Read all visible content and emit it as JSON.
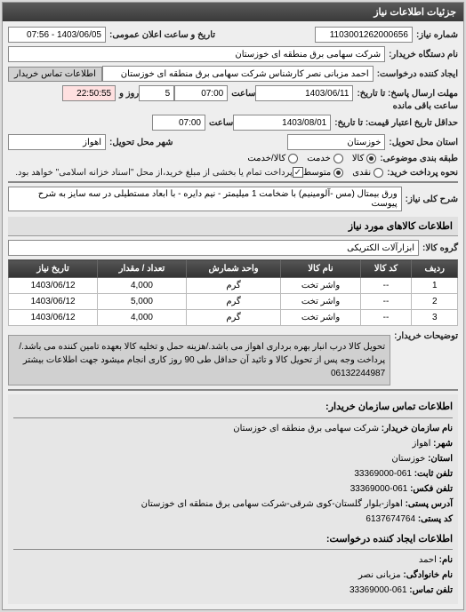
{
  "panel_title": "جزئیات اطلاعات نیاز",
  "header": {
    "req_no_label": "شماره نیاز:",
    "req_no": "1103001262000656",
    "announce_label": "تاریخ و ساعت اعلان عمومی:",
    "announce_value": "1403/06/05 - 07:56",
    "buyer_label": "نام دستگاه خریدار:",
    "buyer_value": "شرکت سهامی برق منطقه ای خوزستان",
    "requester_label": "ایجاد کننده درخواست:",
    "requester_value": "احمد مزبانی نصر کارشناس شرکت سهامی برق منطقه ای خوزستان",
    "contact_btn": "اطلاعات تماس خریدار"
  },
  "dates": {
    "deadline_label": "مهلت ارسال پاسخ: تا تاریخ:",
    "deadline_date": "1403/06/11",
    "deadline_time_label": "ساعت",
    "deadline_time": "07:00",
    "days_label": "روز و",
    "days_value": "5",
    "remain_label": "ساعت باقی مانده",
    "remain_value": "22:50:55",
    "validity_label": "حداقل تاریخ اعتبار قیمت: تا تاریخ:",
    "validity_date": "1403/08/01",
    "validity_time": "07:00"
  },
  "delivery": {
    "province_label": "استان محل تحویل:",
    "province": "خوزستان",
    "city_label": "شهر محل تحویل:",
    "city": "اهواز"
  },
  "package": {
    "label": "طبقه بندی موضوعی:",
    "opt_goods": "کالا",
    "opt_service": "خدمت",
    "pay_label": "کالا/خدمت",
    "receipt_label": "نحوه پرداخت خرید:",
    "opt_low": "نقدی",
    "opt_mid": "متوسط",
    "note": "پرداخت تمام یا بخشی از مبلغ خرید،از محل \"اسناد خزانه اسلامی\" خواهد بود."
  },
  "need": {
    "title_label": "شرح کلی نیاز:",
    "title_value": "ورق بیمتال (مس -آلومینیم) با ضخامت 1 میلیمتر - نیم دایره - با ابعاد مستطیلی در سه سایز به شرح پیوست"
  },
  "goods": {
    "section_title": "اطلاعات کالاهای مورد نیاز",
    "group_label": "گروه کالا:",
    "group_value": "ابزارآلات الکتریکی",
    "columns": [
      "ردیف",
      "کد کالا",
      "نام کالا",
      "واحد شمارش",
      "تعداد / مقدار",
      "تاریخ نیاز"
    ],
    "rows": [
      [
        "1",
        "--",
        "واشر تخت",
        "گرم",
        "4,000",
        "1403/06/12"
      ],
      [
        "2",
        "--",
        "واشر تخت",
        "گرم",
        "5,000",
        "1403/06/12"
      ],
      [
        "3",
        "--",
        "واشر تخت",
        "گرم",
        "4,000",
        "1403/06/12"
      ]
    ]
  },
  "buyer_desc": {
    "label": "توضیحات خریدار:",
    "text": "تحویل کالا درب انبار بهره برداری اهواز می باشد./هزینه حمل و تخلیه کالا بعهده تامین کننده می باشد./ پرداخت وجه پس از تحویل کالا و تائید آن حداقل طی 90 روز کاری انجام میشود جهت اطلاعات بیشتر 06132244987"
  },
  "contact": {
    "section_title": "اطلاعات تماس سازمان خریدار:",
    "org_label": "نام سازمان خریدار:",
    "org": "شرکت سهامی برق منطقه ای خوزستان",
    "city_label": "شهر:",
    "city": "اهواز",
    "province_label": "استان:",
    "province": "خوزستان",
    "phone_label": "تلفن ثابت:",
    "phone": "061-33369000",
    "fax_label": "تلفن فکس:",
    "fax": "061-33369000",
    "addr_label": "آدرس پستی:",
    "addr": "اهواز-بلوار گلستان-کوی شرقی-شرکت سهامی برق منطقه ای خوزستان",
    "zip_label": "کد پستی:",
    "zip": "6137674764",
    "creator_section": "اطلاعات ایجاد کننده درخواست:",
    "name_label": "نام:",
    "name": "احمد",
    "family_label": "نام خانوادگی:",
    "family": "مزبانی نصر",
    "tel_label": "تلفن تماس:",
    "tel": "061-33369000"
  }
}
